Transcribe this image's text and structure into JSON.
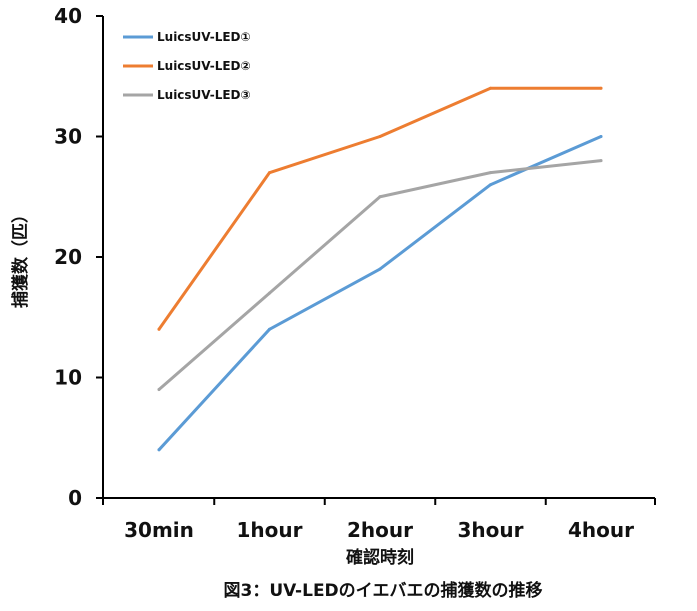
{
  "chart_data": {
    "type": "line",
    "categories": [
      "30min",
      "1hour",
      "2hour",
      "3hour",
      "4hour"
    ],
    "xlabel": "確認時刻",
    "ylabel": "捕獲数（匹）",
    "ylim": [
      0,
      40
    ],
    "yticks": [
      0,
      10,
      20,
      30,
      40
    ],
    "grid": false,
    "legend_position": "top-left",
    "caption": "図3：UV-LEDのイエバエの捕獲数の推移",
    "series": [
      {
        "name": "LuicsUV-LED①",
        "color": "#5b9bd5",
        "values": [
          4,
          14,
          19,
          26,
          30
        ]
      },
      {
        "name": "LuicsUV-LED②",
        "color": "#ed7d31",
        "values": [
          14,
          27,
          30,
          34,
          34
        ]
      },
      {
        "name": "LuicsUV-LED③",
        "color": "#a5a5a5",
        "values": [
          9,
          17,
          25,
          27,
          28
        ]
      }
    ]
  }
}
